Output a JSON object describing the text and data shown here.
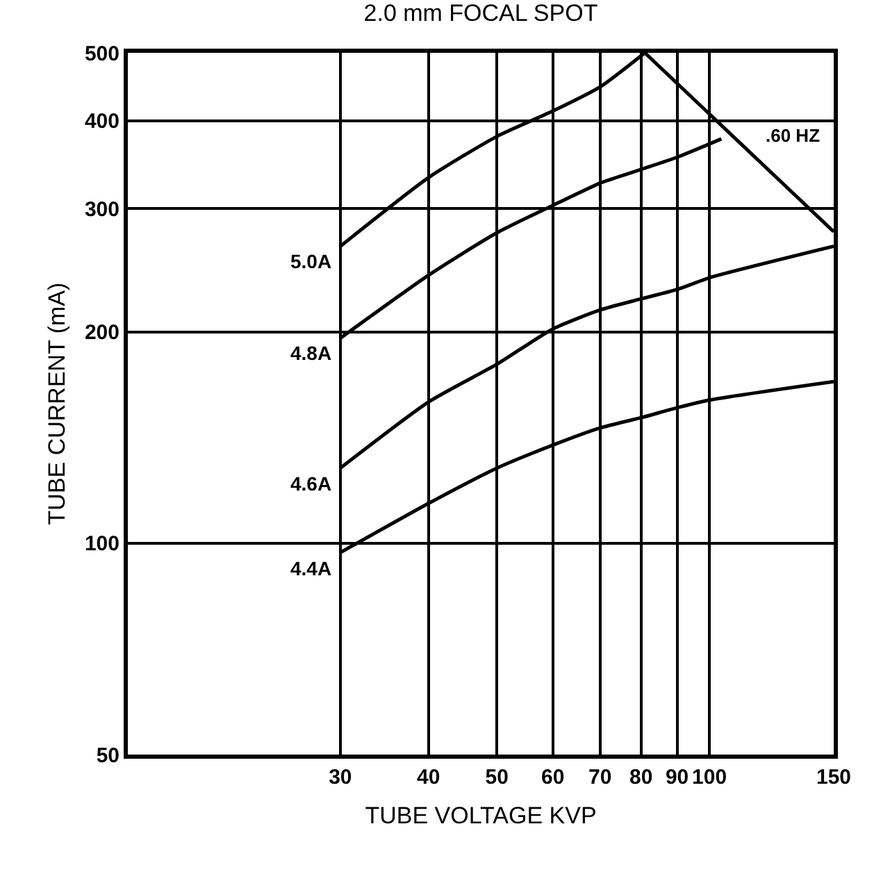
{
  "chart_data": {
    "type": "line",
    "title": "2.0 mm FOCAL SPOT",
    "xlabel": "TUBE VOLTAGE KVP",
    "ylabel": "TUBE CURRENT (mA)",
    "log": "xy",
    "grid": true,
    "legend": false,
    "marker": "none",
    "line_style": "solid",
    "xlim": [
      15,
      150
    ],
    "xticks": [
      30,
      40,
      50,
      60,
      70,
      80,
      90,
      100,
      150
    ],
    "ylim": [
      50,
      500
    ],
    "yticks": [
      50,
      100,
      200,
      300,
      400,
      500
    ],
    "series": [
      {
        "name": "5.0A",
        "color": "#000000",
        "x": [
          30,
          40,
          50,
          60,
          70,
          81
        ],
        "values": [
          265,
          332,
          380,
          413,
          447,
          500
        ]
      },
      {
        "name": "4.8A",
        "color": "#000000",
        "x": [
          30,
          40,
          50,
          60,
          70,
          80,
          90,
          104
        ],
        "values": [
          196,
          241,
          277,
          303,
          326,
          341,
          355,
          377
        ]
      },
      {
        "name": "4.6A",
        "color": "#000000",
        "x": [
          30,
          40,
          50,
          60,
          70,
          80,
          90,
          100,
          150
        ],
        "values": [
          128,
          159,
          180,
          202,
          215,
          223,
          230,
          239,
          265
        ]
      },
      {
        "name": "4.4A",
        "color": "#000000",
        "x": [
          30,
          40,
          50,
          60,
          70,
          80,
          90,
          100,
          150
        ],
        "values": [
          97,
          114,
          128,
          138,
          146,
          151,
          156,
          160,
          170
        ]
      },
      {
        "name": ".60 HZ",
        "color": "#000000",
        "x": [
          81,
          150
        ],
        "values": [
          500,
          278
        ]
      }
    ]
  }
}
